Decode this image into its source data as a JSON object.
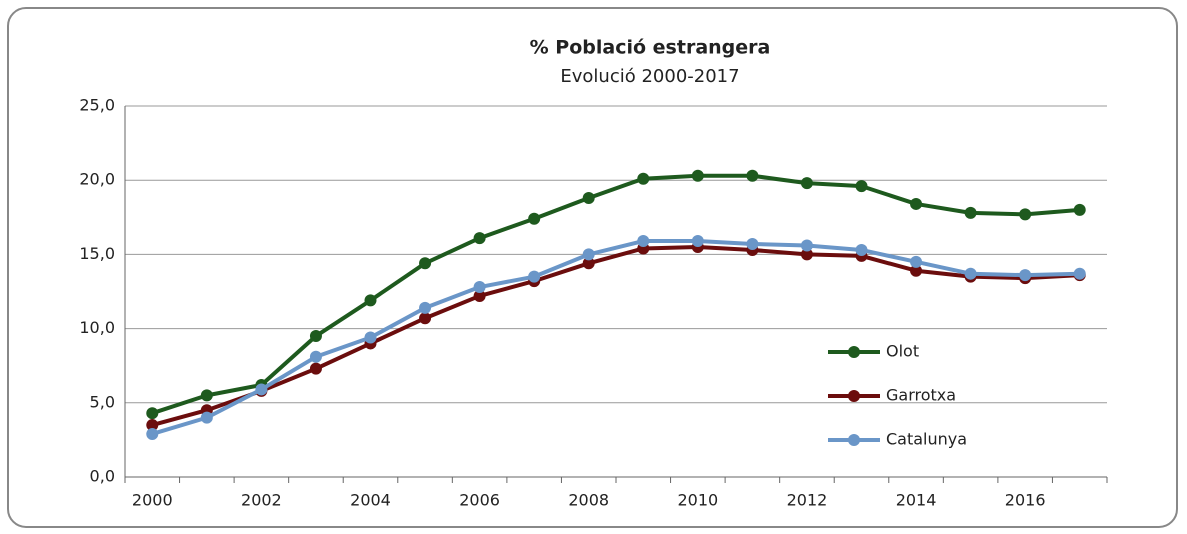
{
  "chart_data": {
    "type": "line",
    "title": "% Població estrangera",
    "subtitle": "Evolució 2000-2017",
    "categories": [
      "2000",
      null,
      "2002",
      null,
      "2004",
      null,
      "2006",
      null,
      "2008",
      null,
      "2010",
      null,
      "2012",
      null,
      "2014",
      null,
      "2016",
      null
    ],
    "series": [
      {
        "name": "Olot",
        "color": "#1e5a1e",
        "values": [
          4.3,
          5.5,
          6.2,
          9.5,
          11.9,
          14.4,
          16.1,
          17.4,
          18.8,
          20.1,
          20.3,
          20.3,
          19.8,
          19.6,
          18.4,
          17.8,
          17.7,
          18.0
        ]
      },
      {
        "name": "Garrotxa",
        "color": "#6b0d0d",
        "values": [
          3.5,
          4.5,
          5.8,
          7.3,
          9.0,
          10.7,
          12.2,
          13.2,
          14.4,
          15.4,
          15.5,
          15.3,
          15.0,
          14.9,
          13.9,
          13.5,
          13.4,
          13.6
        ]
      },
      {
        "name": "Catalunya",
        "color": "#6a96c8",
        "values": [
          2.9,
          4.0,
          5.9,
          8.1,
          9.4,
          11.4,
          12.8,
          13.5,
          15.0,
          15.9,
          15.9,
          15.7,
          15.6,
          15.3,
          14.5,
          13.7,
          13.6,
          13.7
        ]
      }
    ],
    "ylim": [
      0,
      25
    ],
    "yticks": [
      {
        "value": 0,
        "label": "0,0"
      },
      {
        "value": 5,
        "label": "5,0"
      },
      {
        "value": 10,
        "label": "10,0"
      },
      {
        "value": 15,
        "label": "15,0"
      },
      {
        "value": 20,
        "label": "20,0"
      },
      {
        "value": 25,
        "label": "25,0"
      }
    ],
    "grid": true,
    "legend": "right"
  }
}
